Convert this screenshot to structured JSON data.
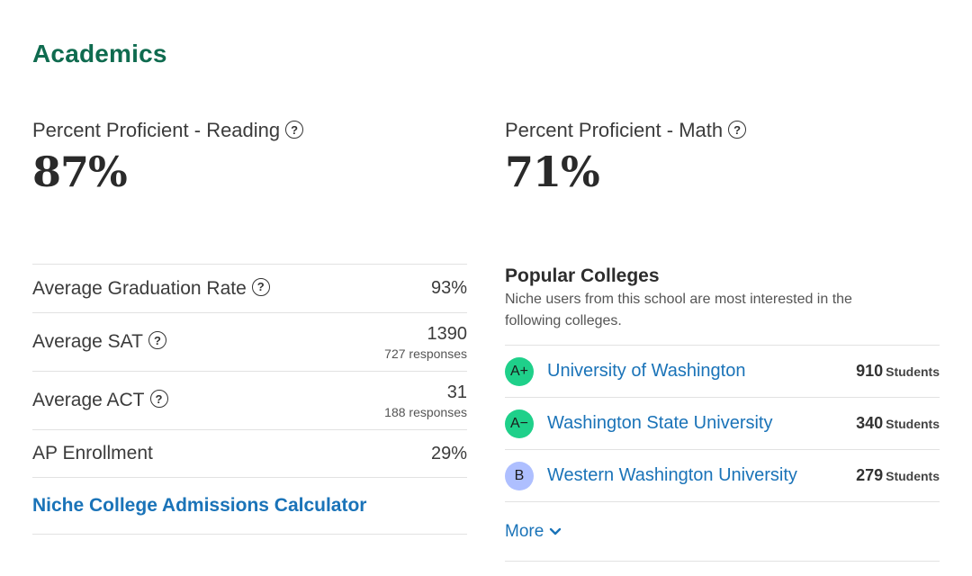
{
  "section": {
    "title": "Academics"
  },
  "stats": [
    {
      "label": "Percent Proficient - Reading",
      "value": "87%"
    },
    {
      "label": "Percent Proficient - Math",
      "value": "71%"
    }
  ],
  "metrics": {
    "graduation": {
      "label": "Average Graduation Rate",
      "value": "93%"
    },
    "sat": {
      "label": "Average SAT",
      "value": "1390",
      "sub": "727 responses"
    },
    "act": {
      "label": "Average ACT",
      "value": "31",
      "sub": "188 responses"
    },
    "ap": {
      "label": "AP Enrollment",
      "value": "29%"
    },
    "calculator_link": "Niche College Admissions Calculator"
  },
  "popular_colleges": {
    "title": "Popular Colleges",
    "description": "Niche users from this school are most interested in the following colleges.",
    "items": [
      {
        "grade": "A+",
        "grade_color": "#1fd08a",
        "name": "University of Washington",
        "count": "910",
        "unit": "Students"
      },
      {
        "grade": "A−",
        "grade_color": "#1fd08a",
        "name": "Washington State University",
        "count": "340",
        "unit": "Students"
      },
      {
        "grade": "B",
        "grade_color": "#aebfff",
        "name": "Western Washington University",
        "count": "279",
        "unit": "Students"
      }
    ],
    "more_label": "More"
  },
  "help_icon_glyph": "?",
  "colors": {
    "accent_green": "#0f6b4f",
    "link_blue": "#1a73b8"
  }
}
